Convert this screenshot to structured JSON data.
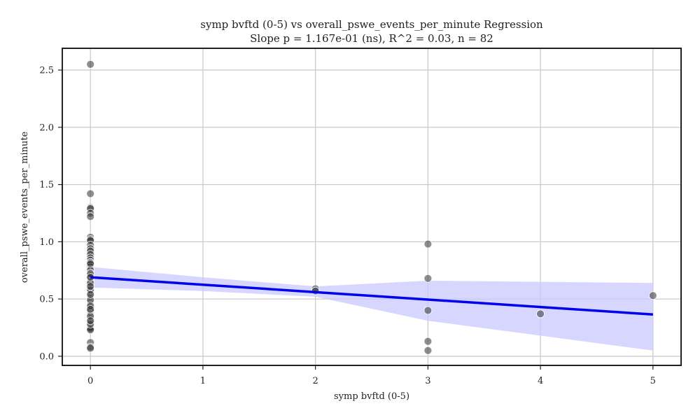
{
  "chart_data": {
    "type": "scatter",
    "title": "symp bvftd (0-5) vs overall_pswe_events_per_minute Regression",
    "subtitle": "Slope p = 1.167e-01 (ns), R^2 = 0.03, n = 82",
    "xlabel": "symp bvftd (0-5)",
    "ylabel": "overall_pswe_events_per_minute",
    "xlim": [
      -0.25,
      5.25
    ],
    "ylim": [
      -0.08,
      2.69
    ],
    "xticks": [
      "0",
      "1",
      "2",
      "3",
      "4",
      "5"
    ],
    "yticks": [
      "0.0",
      "0.5",
      "1.0",
      "1.5",
      "2.0",
      "2.5"
    ],
    "grid": true,
    "colors": {
      "points": "#333333",
      "line": "#0000ee",
      "band": "#c8c8ff"
    },
    "points": [
      {
        "x": 0,
        "y": 2.55
      },
      {
        "x": 0,
        "y": 1.42
      },
      {
        "x": 0,
        "y": 1.3
      },
      {
        "x": 0,
        "y": 1.29
      },
      {
        "x": 0,
        "y": 1.25
      },
      {
        "x": 0,
        "y": 1.22
      },
      {
        "x": 0,
        "y": 1.04
      },
      {
        "x": 0,
        "y": 1.02
      },
      {
        "x": 0,
        "y": 1.01
      },
      {
        "x": 0,
        "y": 0.97
      },
      {
        "x": 0,
        "y": 0.94
      },
      {
        "x": 0,
        "y": 0.92
      },
      {
        "x": 0,
        "y": 0.89
      },
      {
        "x": 0,
        "y": 0.86
      },
      {
        "x": 0,
        "y": 0.84
      },
      {
        "x": 0,
        "y": 0.82
      },
      {
        "x": 0,
        "y": 0.8
      },
      {
        "x": 0,
        "y": 0.78
      },
      {
        "x": 0,
        "y": 0.76
      },
      {
        "x": 0,
        "y": 0.75
      },
      {
        "x": 0,
        "y": 0.73
      },
      {
        "x": 0,
        "y": 0.71
      },
      {
        "x": 0,
        "y": 0.7
      },
      {
        "x": 0,
        "y": 0.68
      },
      {
        "x": 0,
        "y": 0.66
      },
      {
        "x": 0,
        "y": 0.65
      },
      {
        "x": 0,
        "y": 0.63
      },
      {
        "x": 0,
        "y": 0.62
      },
      {
        "x": 0,
        "y": 0.6
      },
      {
        "x": 0,
        "y": 0.59
      },
      {
        "x": 0,
        "y": 0.57
      },
      {
        "x": 0,
        "y": 0.56
      },
      {
        "x": 0,
        "y": 0.55
      },
      {
        "x": 0,
        "y": 0.53
      },
      {
        "x": 0,
        "y": 0.52
      },
      {
        "x": 0,
        "y": 0.51
      },
      {
        "x": 0,
        "y": 0.5
      },
      {
        "x": 0,
        "y": 0.48
      },
      {
        "x": 0,
        "y": 0.47
      },
      {
        "x": 0,
        "y": 0.46
      },
      {
        "x": 0,
        "y": 0.45
      },
      {
        "x": 0,
        "y": 0.43
      },
      {
        "x": 0,
        "y": 0.42
      },
      {
        "x": 0,
        "y": 0.4
      },
      {
        "x": 0,
        "y": 0.39
      },
      {
        "x": 0,
        "y": 0.37
      },
      {
        "x": 0,
        "y": 0.36
      },
      {
        "x": 0,
        "y": 0.34
      },
      {
        "x": 0,
        "y": 0.33
      },
      {
        "x": 0,
        "y": 0.32
      },
      {
        "x": 0,
        "y": 0.3
      },
      {
        "x": 0,
        "y": 0.29
      },
      {
        "x": 0,
        "y": 0.27
      },
      {
        "x": 0,
        "y": 0.26
      },
      {
        "x": 0,
        "y": 0.25
      },
      {
        "x": 0,
        "y": 0.24
      },
      {
        "x": 0,
        "y": 0.23
      },
      {
        "x": 0,
        "y": 0.12
      },
      {
        "x": 0,
        "y": 0.08
      },
      {
        "x": 0,
        "y": 0.07
      },
      {
        "x": 0,
        "y": 0.64
      },
      {
        "x": 0,
        "y": 0.58
      },
      {
        "x": 0,
        "y": 0.49
      },
      {
        "x": 0,
        "y": 0.44
      },
      {
        "x": 0,
        "y": 0.35
      },
      {
        "x": 0,
        "y": 0.72
      },
      {
        "x": 0,
        "y": 0.81
      },
      {
        "x": 0,
        "y": 0.54
      },
      {
        "x": 0,
        "y": 0.61
      },
      {
        "x": 0,
        "y": 0.41
      },
      {
        "x": 0,
        "y": 0.28
      },
      {
        "x": 2,
        "y": 0.59
      },
      {
        "x": 2,
        "y": 0.57
      },
      {
        "x": 3,
        "y": 0.98
      },
      {
        "x": 3,
        "y": 0.68
      },
      {
        "x": 3,
        "y": 0.4
      },
      {
        "x": 3,
        "y": 0.13
      },
      {
        "x": 3,
        "y": 0.05
      },
      {
        "x": 4,
        "y": 0.37
      },
      {
        "x": 5,
        "y": 0.53
      },
      {
        "x": 0,
        "y": 0.69
      },
      {
        "x": 0,
        "y": 0.31
      }
    ],
    "regression": {
      "x": [
        0,
        1,
        2,
        3,
        4,
        5
      ],
      "y": [
        0.69,
        0.625,
        0.56,
        0.495,
        0.43,
        0.365
      ],
      "ci_low": [
        0.6,
        0.57,
        0.52,
        0.31,
        0.18,
        0.05
      ],
      "ci_high": [
        0.78,
        0.69,
        0.61,
        0.66,
        0.65,
        0.64
      ]
    }
  }
}
